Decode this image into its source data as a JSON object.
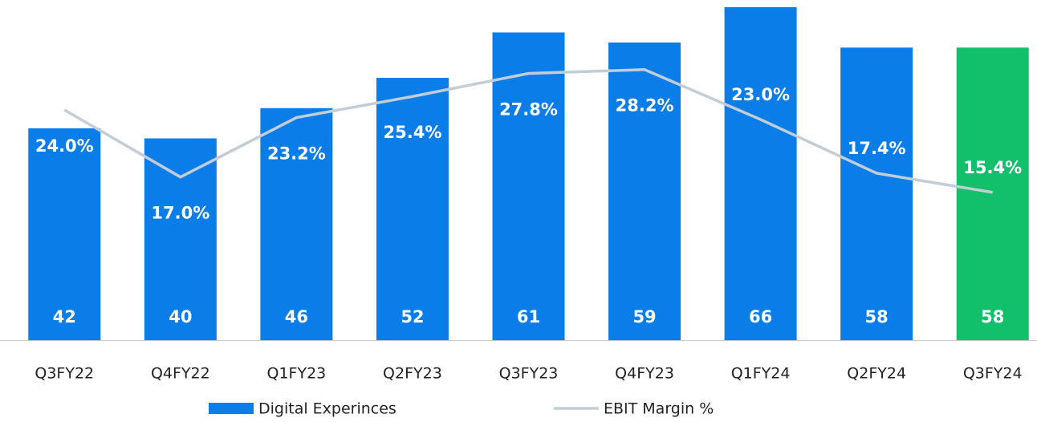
{
  "chart_data": {
    "type": "bar",
    "categories": [
      "Q3FY22",
      "Q4FY22",
      "Q1FY23",
      "Q2FY23",
      "Q3FY23",
      "Q4FY23",
      "Q1FY24",
      "Q2FY24",
      "Q3FY24"
    ],
    "ylim": [
      0,
      66
    ],
    "y2lim": [
      0,
      34.7
    ],
    "series": [
      {
        "name": "Digital Experinces",
        "type": "bar",
        "color": "#0b7de8",
        "colors": [
          "#0b7de8",
          "#0b7de8",
          "#0b7de8",
          "#0b7de8",
          "#0b7de8",
          "#0b7de8",
          "#0b7de8",
          "#0b7de8",
          "#12bf6b"
        ],
        "values": [
          42,
          40,
          46,
          52,
          61,
          59,
          66,
          58,
          58
        ]
      },
      {
        "name": "EBIT Margin %",
        "type": "line",
        "axis": "y2",
        "color": "#c2cdd6",
        "values": [
          24.0,
          17.0,
          23.2,
          25.4,
          27.8,
          28.2,
          23.0,
          17.4,
          15.4
        ],
        "value_labels": [
          "24.0%",
          "17.0%",
          "23.2%",
          "25.4%",
          "27.8%",
          "28.2%",
          "23.0%",
          "17.4%",
          "15.4%"
        ]
      }
    ]
  }
}
